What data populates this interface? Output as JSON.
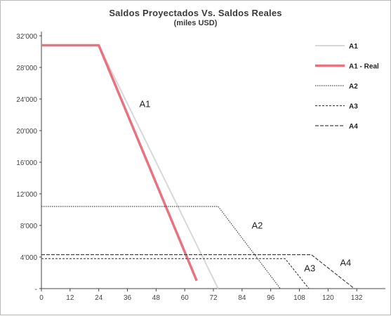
{
  "chart_data": {
    "type": "line",
    "title": "Saldos Proyectados Vs. Saldos Reales",
    "subtitle": "(miles USD)",
    "xlabel": "",
    "ylabel": "",
    "xlim": [
      0,
      144
    ],
    "ylim": [
      0,
      32000
    ],
    "x_ticks": [
      0,
      12,
      24,
      36,
      48,
      60,
      72,
      84,
      96,
      108,
      120,
      132
    ],
    "y_ticks": [
      {
        "value": 32000,
        "label": "32'000"
      },
      {
        "value": 28000,
        "label": "28'000"
      },
      {
        "value": 24000,
        "label": "24'000"
      },
      {
        "value": 20000,
        "label": "20'000"
      },
      {
        "value": 16000,
        "label": "16'000"
      },
      {
        "value": 12000,
        "label": "12'000"
      },
      {
        "value": 8000,
        "label": "8'000"
      },
      {
        "value": 4000,
        "label": "4'000"
      },
      {
        "value": 0,
        "label": "-"
      }
    ],
    "legend_position": "right",
    "grid": false,
    "series": [
      {
        "name": "A1",
        "color": "#d8d8d8",
        "dash": "",
        "width": 2,
        "points": [
          [
            0,
            30800
          ],
          [
            24,
            30800
          ],
          [
            74,
            0
          ]
        ]
      },
      {
        "name": "A1 - Real",
        "color": "#e8727e",
        "dash": "",
        "width": 3.5,
        "points": [
          [
            0,
            30800
          ],
          [
            24,
            30800
          ],
          [
            65,
            1000
          ]
        ]
      },
      {
        "name": "A2",
        "color": "#444444",
        "dash": "1.5,1.5",
        "width": 1.2,
        "points": [
          [
            0,
            10400
          ],
          [
            74,
            10400
          ],
          [
            100,
            0
          ]
        ]
      },
      {
        "name": "A3",
        "color": "#444444",
        "dash": "3,2",
        "width": 1.2,
        "points": [
          [
            0,
            3800
          ],
          [
            102,
            3800
          ],
          [
            112,
            0
          ]
        ]
      },
      {
        "name": "A4",
        "color": "#444444",
        "dash": "5,2",
        "width": 1.2,
        "points": [
          [
            0,
            4300
          ],
          [
            113,
            4300
          ],
          [
            131,
            0
          ]
        ]
      }
    ],
    "annotations": [
      {
        "text": "A1",
        "x": 41,
        "y": 23000
      },
      {
        "text": "A2",
        "x": 88,
        "y": 7600
      },
      {
        "text": "A3",
        "x": 110,
        "y": 2200
      },
      {
        "text": "A4",
        "x": 125,
        "y": 2900
      }
    ]
  }
}
